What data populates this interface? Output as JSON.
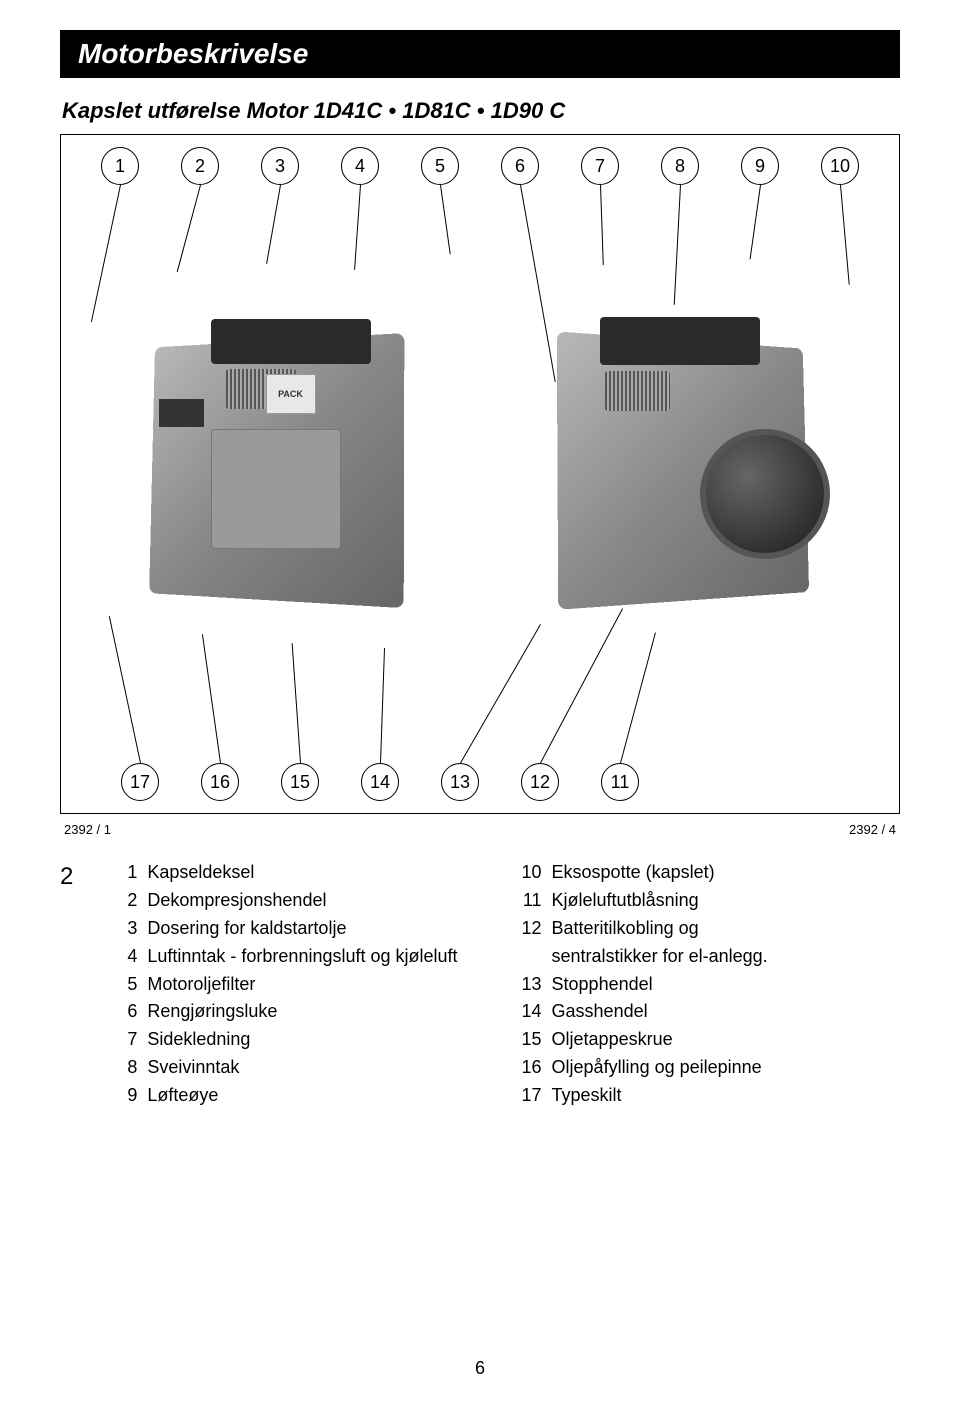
{
  "header": {
    "title": "Motorbeskrivelse"
  },
  "subtitle": "Kapslet utførelse Motor 1D41C • 1D81C • 1D90 C",
  "figure": {
    "top_callouts": [
      "1",
      "2",
      "3",
      "4",
      "5",
      "6",
      "7",
      "8",
      "9",
      "10"
    ],
    "bottom_callouts": [
      "17",
      "16",
      "15",
      "14",
      "13",
      "12",
      "11"
    ],
    "ref_left": "2392 / 1",
    "ref_right": "2392 / 4",
    "pack_label": "PACK"
  },
  "legend": {
    "figure_number": "2",
    "left_column": [
      {
        "num": "1",
        "text": "Kapseldeksel"
      },
      {
        "num": "2",
        "text": "Dekompresjonshendel"
      },
      {
        "num": "3",
        "text": "Dosering for kaldstartolje"
      },
      {
        "num": "4",
        "text": "Luftinntak - forbrenningsluft og kjøleluft"
      },
      {
        "num": "5",
        "text": "Motoroljefilter"
      },
      {
        "num": "6",
        "text": "Rengjøringsluke"
      },
      {
        "num": "7",
        "text": "Sidekledning"
      },
      {
        "num": "8",
        "text": "Sveivinntak"
      },
      {
        "num": "9",
        "text": "Løfteøye"
      }
    ],
    "right_column": [
      {
        "num": "10",
        "text": "Eksospotte (kapslet)"
      },
      {
        "num": "11",
        "text": "Kjøleluftutblåsning"
      },
      {
        "num": "12",
        "text": "Batteritilkobling og",
        "cont": "sentralstikker for el-anlegg."
      },
      {
        "num": "13",
        "text": "Stopphendel"
      },
      {
        "num": "14",
        "text": "Gasshendel"
      },
      {
        "num": "15",
        "text": "Oljetappeskrue"
      },
      {
        "num": "16",
        "text": "Oljepåfylling og peilepinne"
      },
      {
        "num": "17",
        "text": "Typeskilt"
      }
    ]
  },
  "page_number": "6"
}
